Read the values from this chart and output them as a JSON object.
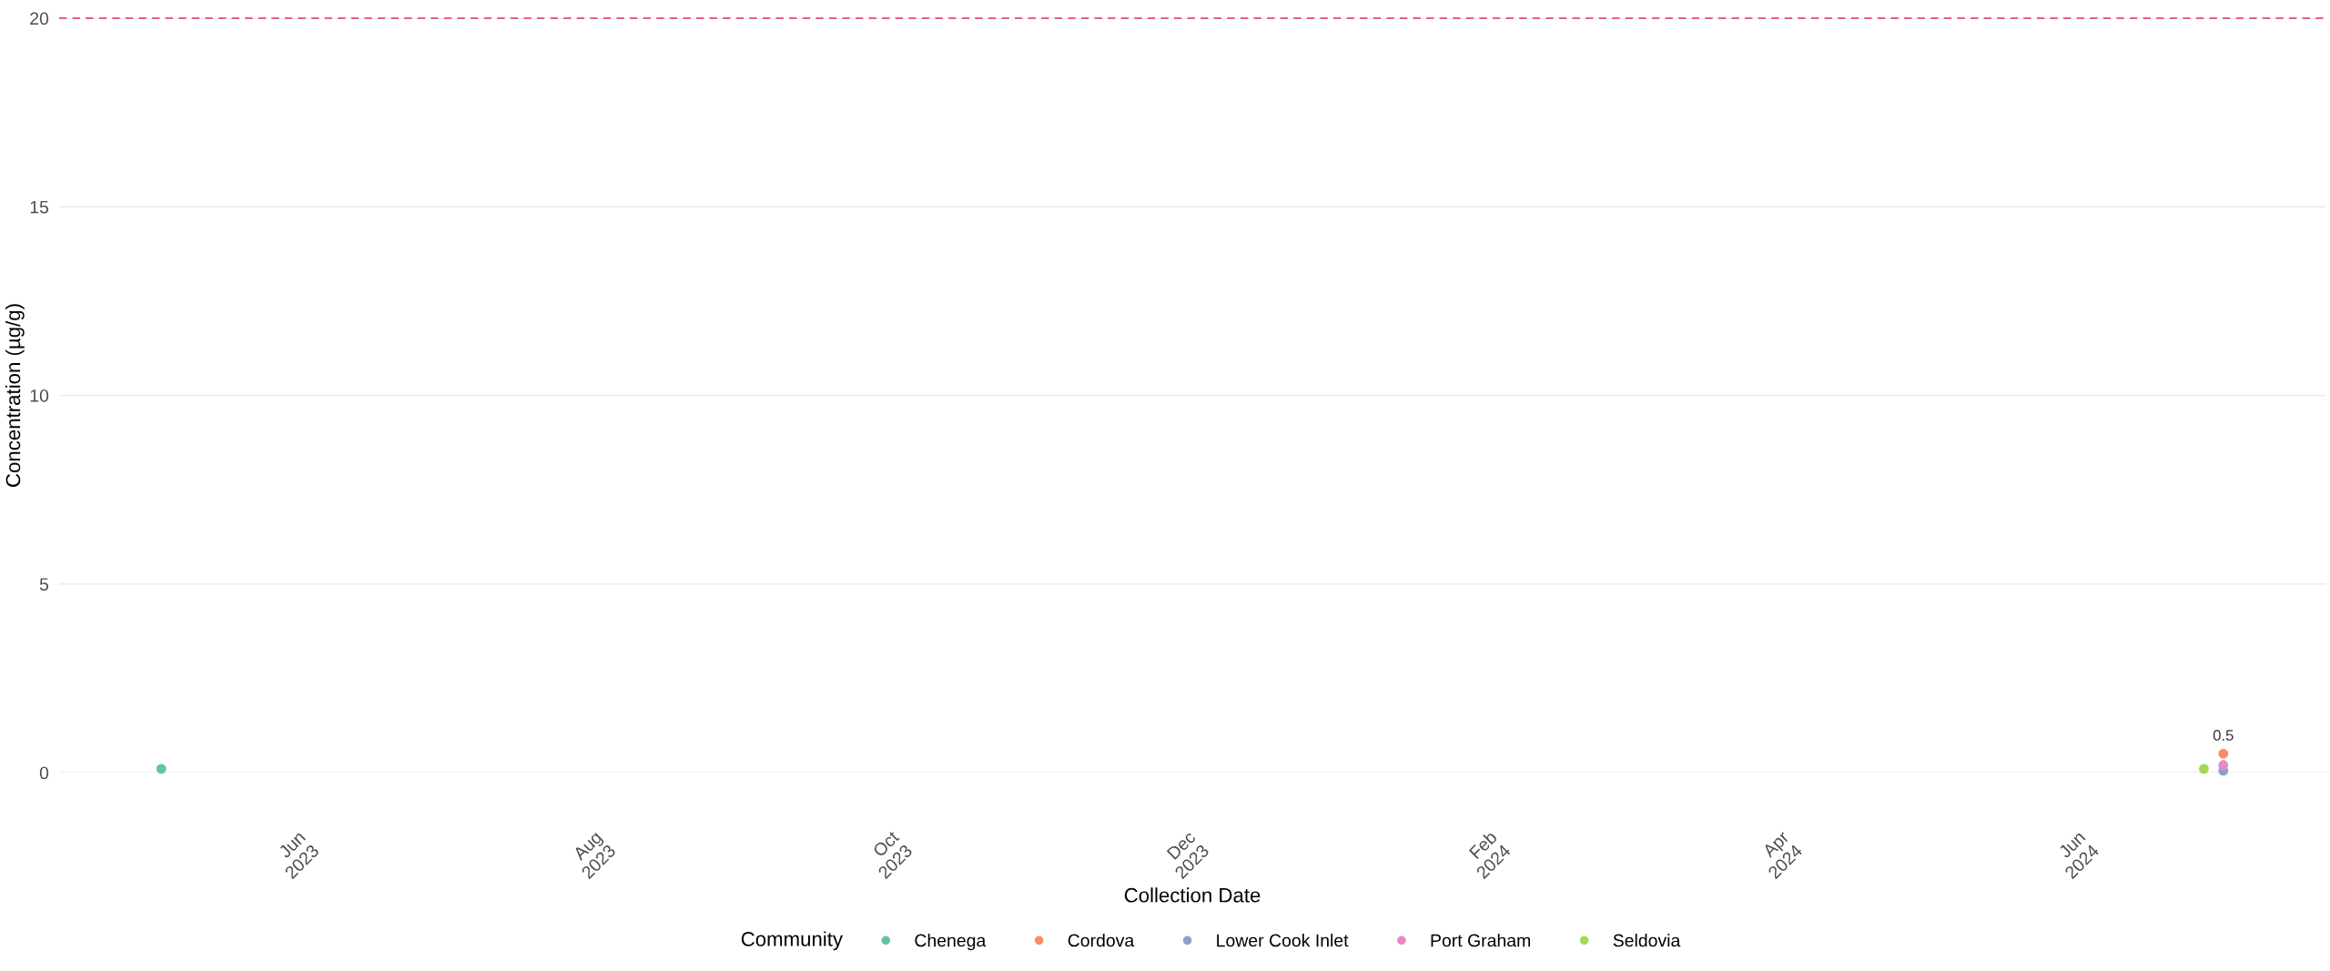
{
  "chart_data": {
    "type": "scatter",
    "xlabel": "Collection Date",
    "ylabel": "Concentration (µg/g)",
    "legend_title": "Community",
    "legend": "bottom",
    "grid": "y",
    "marker": "circle",
    "xlim": [
      "2023-04-13",
      "2024-07-22"
    ],
    "xticks": [
      {
        "value": "2023-06-01",
        "label": "Jun\n2023"
      },
      {
        "value": "2023-08-01",
        "label": "Aug\n2023"
      },
      {
        "value": "2023-10-01",
        "label": "Oct\n2023"
      },
      {
        "value": "2023-12-01",
        "label": "Dec\n2023"
      },
      {
        "value": "2024-02-01",
        "label": "Feb\n2024"
      },
      {
        "value": "2024-04-01",
        "label": "Apr\n2024"
      },
      {
        "value": "2024-06-01",
        "label": "Jun\n2024"
      }
    ],
    "ylim": [
      0,
      20
    ],
    "yticks": [
      0,
      5,
      10,
      15,
      20
    ],
    "ref_lines": [
      {
        "axis": "y",
        "value": 20,
        "color": "#e8607a",
        "line_style": "dashed"
      }
    ],
    "series": [
      {
        "name": "Chenega",
        "color": "#66c2a5",
        "x": [
          "2023-05-04"
        ],
        "values": [
          0.1
        ]
      },
      {
        "name": "Cordova",
        "color": "#fc8d62",
        "x": [
          "2024-07-01"
        ],
        "values": [
          0.5
        ],
        "value_labels": [
          "0.5"
        ]
      },
      {
        "name": "Lower Cook Inlet",
        "color": "#8da0cb",
        "x": [
          "2024-07-01"
        ],
        "values": [
          0.05
        ]
      },
      {
        "name": "Port Graham",
        "color": "#e78ac3",
        "x": [
          "2024-07-01"
        ],
        "values": [
          0.2
        ]
      },
      {
        "name": "Seldovia",
        "color": "#a6d854",
        "x": [
          "2024-06-27"
        ],
        "values": [
          0.1
        ]
      }
    ]
  }
}
